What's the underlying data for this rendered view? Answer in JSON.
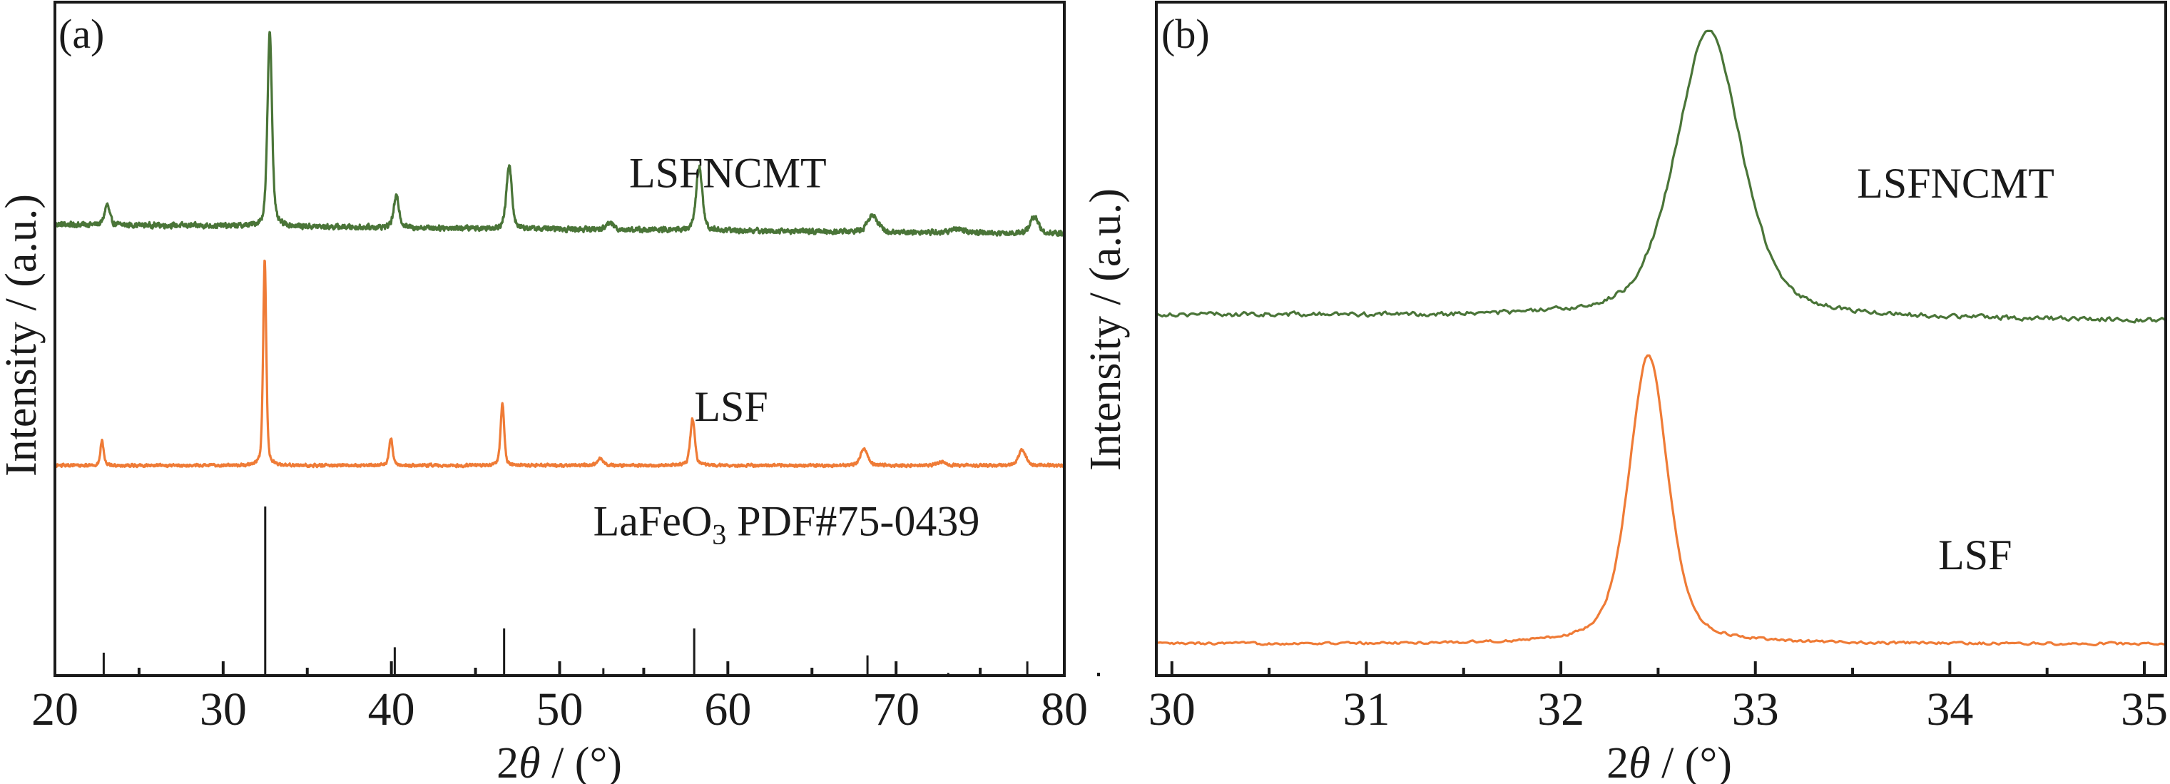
{
  "figure": {
    "panels": [
      "(a)",
      "(b)"
    ]
  },
  "colors": {
    "LSFNCMT": "#4a7538",
    "LSF": "#ef7b36",
    "axes": "#1a1a1a"
  },
  "chart_data": [
    {
      "id": "a",
      "type": "line",
      "panel_label": "(a)",
      "title": "",
      "xlabel_prefix": "2",
      "xlabel_theta": "θ",
      "xlabel_suffix": " / (°)",
      "ylabel": "Intensity / (a.u.)",
      "xlim": [
        20,
        80
      ],
      "ylim": [
        0,
        100
      ],
      "x_ticks_major": [
        20,
        30,
        40,
        50,
        60,
        70,
        80
      ],
      "x_tick_labels": [
        "20",
        "30",
        "40",
        "50",
        "60",
        "70",
        "80"
      ],
      "x_ticks_minor": [
        25,
        35,
        45,
        55,
        65,
        75
      ],
      "grid": false,
      "legend": "none (inline labels)",
      "series": [
        {
          "name": "LSFNCMT",
          "label": "LSFNCMT",
          "color_key": "LSFNCMT",
          "baseline": [
            67.0,
            65.6
          ],
          "noise": 0.55,
          "peaks": [
            {
              "x": 23.1,
              "height": 3.0,
              "fwhm": 0.35
            },
            {
              "x": 32.77,
              "height": 29.0,
              "fwhm": 0.32
            },
            {
              "x": 40.3,
              "height": 4.6,
              "fwhm": 0.38
            },
            {
              "x": 47.0,
              "height": 9.4,
              "fwhm": 0.38
            },
            {
              "x": 53.0,
              "height": 1.0,
              "fwhm": 0.5
            },
            {
              "x": 58.3,
              "height": 9.6,
              "fwhm": 0.42
            },
            {
              "x": 68.6,
              "height": 2.6,
              "fwhm": 0.7
            },
            {
              "x": 73.6,
              "height": 0.6,
              "fwhm": 0.8
            },
            {
              "x": 78.2,
              "height": 2.5,
              "fwhm": 0.6
            }
          ]
        },
        {
          "name": "LSF",
          "label": "LSF",
          "color_key": "LSF",
          "baseline": [
            31.2,
            31.2
          ],
          "noise": 0.3,
          "peaks": [
            {
              "x": 22.8,
              "height": 3.7,
              "fwhm": 0.22
            },
            {
              "x": 32.47,
              "height": 30.5,
              "fwhm": 0.22
            },
            {
              "x": 39.97,
              "height": 4.1,
              "fwhm": 0.25
            },
            {
              "x": 46.6,
              "height": 9.2,
              "fwhm": 0.25
            },
            {
              "x": 52.4,
              "height": 1.1,
              "fwhm": 0.4
            },
            {
              "x": 57.9,
              "height": 6.9,
              "fwhm": 0.32
            },
            {
              "x": 68.1,
              "height": 2.5,
              "fwhm": 0.5
            },
            {
              "x": 72.7,
              "height": 0.5,
              "fwhm": 0.6
            },
            {
              "x": 77.5,
              "height": 2.3,
              "fwhm": 0.5
            }
          ]
        }
      ],
      "reference": {
        "label_main": "LaFeO",
        "label_sub": "3",
        "label_rest": " PDF#75-0439",
        "lines": [
          {
            "x": 22.9,
            "height": 3.4
          },
          {
            "x": 32.5,
            "height": 25.1
          },
          {
            "x": 40.2,
            "height": 4.2
          },
          {
            "x": 46.7,
            "height": 7.0
          },
          {
            "x": 52.6,
            "height": 1.1
          },
          {
            "x": 58.0,
            "height": 7.0
          },
          {
            "x": 68.3,
            "height": 3.0
          },
          {
            "x": 73.1,
            "height": 0.4
          },
          {
            "x": 77.8,
            "height": 2.1
          }
        ]
      },
      "annotations": [
        {
          "text": "LSFNCMT",
          "x": 60.0,
          "y": 72.5
        },
        {
          "text": "LSF",
          "x": 60.2,
          "y": 37.8
        },
        {
          "text": "LaFeO3 PDF#75-0439",
          "x": 52.0,
          "y": 20.8
        }
      ]
    },
    {
      "id": "b",
      "type": "line",
      "panel_label": "(b)",
      "title": "",
      "xlabel_prefix": "2",
      "xlabel_theta": "θ",
      "xlabel_suffix": " / (°)",
      "ylabel": "Intensity / (a.u.)",
      "xlim": [
        29.92,
        35.11
      ],
      "ylim": [
        0,
        100
      ],
      "x_ticks_major": [
        30,
        31,
        32,
        33,
        34,
        35
      ],
      "x_tick_labels": [
        "30",
        "31",
        "32",
        "33",
        "34",
        "35"
      ],
      "x_ticks_minor": [
        30.5,
        31.5,
        32.5,
        33.5,
        34.5
      ],
      "grid": false,
      "legend": "none (inline labels)",
      "series": [
        {
          "name": "LSFNCMT",
          "label": "LSFNCMT",
          "color_key": "LSFNCMT",
          "baseline": [
            53.6,
            52.7
          ],
          "noise": 0.5,
          "peaks": [
            {
              "x": 32.76,
              "height": 42.5,
              "fwhm": 0.4
            }
          ]
        },
        {
          "name": "LSF",
          "label": "LSF",
          "color_key": "LSF",
          "baseline": [
            4.7,
            4.7
          ],
          "noise": 0.28,
          "peaks": [
            {
              "x": 32.45,
              "height": 43.0,
              "fwhm": 0.235
            }
          ]
        }
      ],
      "annotations": [
        {
          "text": "LSFNCMT",
          "x": 34.03,
          "y": 71.0
        },
        {
          "text": "LSF",
          "x": 34.13,
          "y": 15.8
        }
      ]
    }
  ]
}
